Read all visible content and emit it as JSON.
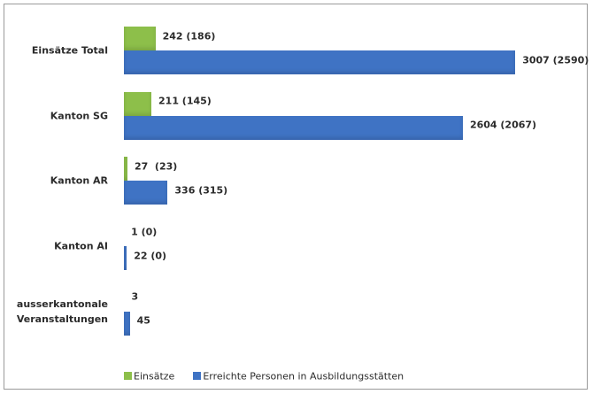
{
  "chart_data": {
    "type": "bar",
    "orientation": "horizontal",
    "categories": [
      "Einsätze Total",
      "Kanton SG",
      "Kanton AR",
      "Kanton AI",
      "ausserkantonale Veranstaltungen"
    ],
    "series": [
      {
        "name": "Einsätze",
        "color": "#8dbf4a",
        "values": [
          242,
          211,
          27,
          1,
          3
        ],
        "value_labels": [
          "242 (186)",
          "211 (145)",
          "27  (23)",
          "1 (0)",
          "3"
        ]
      },
      {
        "name": "Erreichte Personen in Ausbildungsstätten",
        "color": "#3f73c4",
        "values": [
          3007,
          2604,
          336,
          22,
          45
        ],
        "value_labels": [
          "3007 (2590)",
          "2604 (2067)",
          "336 (315)",
          "22 (0)",
          "45"
        ]
      }
    ],
    "xlim": [
      0,
      3400
    ],
    "legend": "bottom"
  }
}
